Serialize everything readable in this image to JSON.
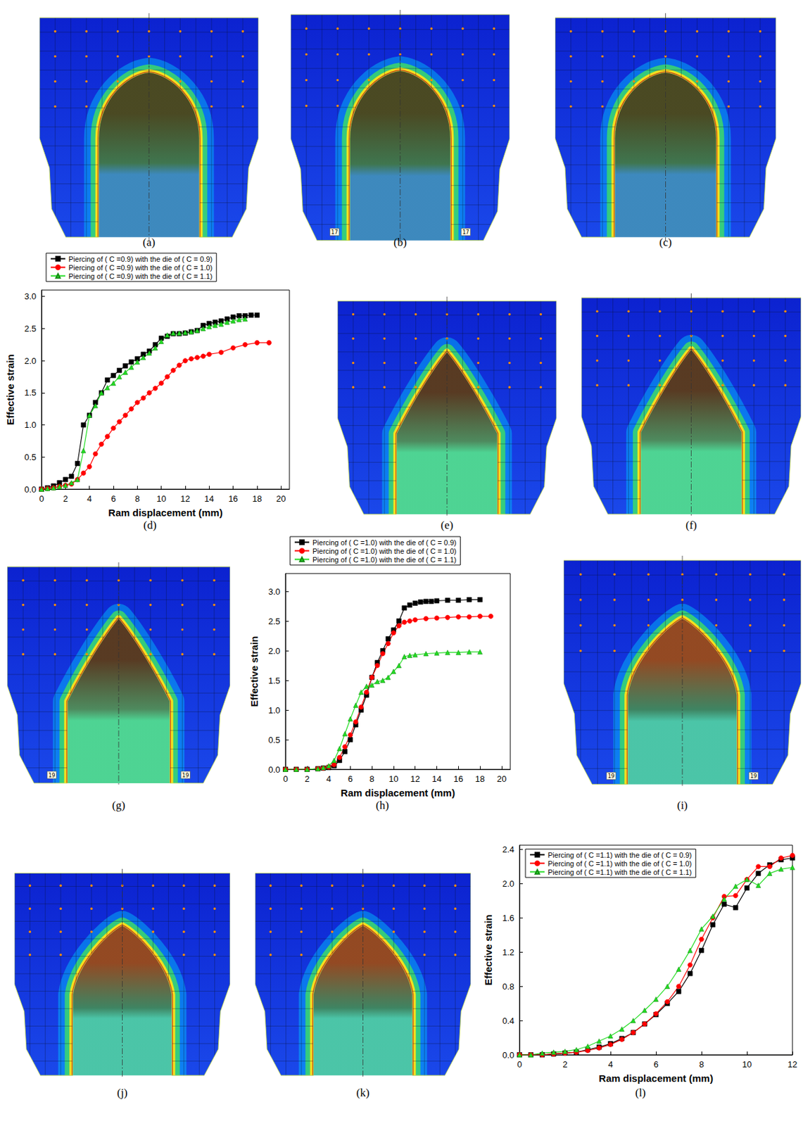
{
  "simulations": [
    {
      "label": "(a)"
    },
    {
      "label": "(b)",
      "node_labels": [
        "17",
        "17"
      ]
    },
    {
      "label": "(c)"
    },
    {
      "label": "(e)"
    },
    {
      "label": "(f)"
    },
    {
      "label": "(g)",
      "node_labels": [
        "19",
        "19"
      ]
    },
    {
      "label": "(i)",
      "node_labels": [
        "19",
        "19"
      ]
    },
    {
      "label": "(j)"
    },
    {
      "label": "(k)"
    }
  ],
  "chart_data": [
    {
      "type": "line",
      "caption": "(d)",
      "x_label": "Ram displacement (mm)",
      "y_label": "Effective strain",
      "xlim": [
        0,
        20.7
      ],
      "xticks": [
        0,
        2,
        4,
        6,
        8,
        10,
        12,
        14,
        16,
        18,
        20
      ],
      "ylim": [
        0,
        3.1
      ],
      "yticks": [
        {
          "value": 0,
          "label": "0.0"
        },
        0.5,
        {
          "value": 1,
          "label": "1.0"
        },
        1.5,
        {
          "value": 2,
          "label": "2.0"
        },
        2.5,
        {
          "value": 3,
          "label": "3.0"
        }
      ],
      "grid": false,
      "legend": "top",
      "series": [
        {
          "name": "Piercing of ( C =0.9) with the die of ( C = 0.9)",
          "color": "#000000",
          "marker": "square",
          "line_style": "solid",
          "x": [
            0,
            0.5,
            1,
            1.5,
            2,
            2.5,
            3,
            3.5,
            4,
            4.5,
            5,
            5.5,
            6,
            6.5,
            7,
            7.5,
            8,
            8.5,
            9,
            9.5,
            10,
            10.5,
            11,
            11.5,
            12,
            12.5,
            13,
            13.5,
            14,
            14.5,
            15,
            15.5,
            16,
            16.5,
            17,
            17.5,
            18
          ],
          "values": [
            0,
            0.02,
            0.05,
            0.1,
            0.15,
            0.2,
            0.4,
            1.0,
            1.15,
            1.35,
            1.5,
            1.7,
            1.77,
            1.85,
            1.92,
            1.98,
            2.03,
            2.1,
            2.15,
            2.25,
            2.35,
            2.38,
            2.42,
            2.42,
            2.43,
            2.45,
            2.47,
            2.55,
            2.58,
            2.6,
            2.62,
            2.65,
            2.68,
            2.7,
            2.7,
            2.71,
            2.71
          ]
        },
        {
          "name": "Piercing of ( C =0.9) with the die of ( C = 1.0)",
          "color": "#ff0000",
          "marker": "circle",
          "line_style": "solid",
          "x": [
            0,
            0.5,
            1,
            1.5,
            2,
            2.5,
            3,
            3.5,
            4,
            4.5,
            5,
            5.5,
            6,
            6.5,
            7,
            7.5,
            8,
            8.5,
            9,
            9.5,
            10,
            10.5,
            11,
            11.5,
            12,
            12.5,
            13,
            13.5,
            14,
            15,
            16,
            17,
            18,
            19
          ],
          "values": [
            0,
            0.01,
            0.02,
            0.04,
            0.06,
            0.08,
            0.15,
            0.25,
            0.35,
            0.55,
            0.7,
            0.82,
            0.95,
            1.05,
            1.15,
            1.25,
            1.35,
            1.42,
            1.5,
            1.57,
            1.65,
            1.75,
            1.85,
            1.93,
            2.0,
            2.03,
            2.05,
            2.07,
            2.1,
            2.13,
            2.2,
            2.25,
            2.28,
            2.28
          ]
        },
        {
          "name": "Piercing of ( C =0.9) with the die of ( C = 1.1)",
          "color": "#22dd22",
          "marker": "triangle",
          "line_style": "solid",
          "x": [
            0,
            0.5,
            1,
            1.5,
            2,
            2.5,
            3,
            3.5,
            4,
            4.5,
            5,
            5.5,
            6,
            6.5,
            7,
            7.5,
            8,
            8.5,
            9,
            9.5,
            10,
            10.5,
            11,
            11.5,
            12,
            12.5,
            13,
            13.5,
            14,
            14.5,
            15,
            15.5,
            16,
            16.5,
            17
          ],
          "values": [
            0,
            0.01,
            0.02,
            0.04,
            0.06,
            0.1,
            0.15,
            0.6,
            1.15,
            1.3,
            1.5,
            1.58,
            1.65,
            1.75,
            1.82,
            1.9,
            1.98,
            2.05,
            2.12,
            2.2,
            2.3,
            2.4,
            2.43,
            2.43,
            2.44,
            2.45,
            2.47,
            2.5,
            2.53,
            2.55,
            2.57,
            2.6,
            2.62,
            2.64,
            2.65
          ]
        }
      ]
    },
    {
      "type": "line",
      "caption": "(h)",
      "x_label": "Ram displacement (mm)",
      "y_label": "Effective strain",
      "xlim": [
        0,
        20.8
      ],
      "xticks": [
        0,
        2,
        4,
        6,
        8,
        10,
        12,
        14,
        16,
        18,
        20
      ],
      "ylim": [
        0,
        3.3
      ],
      "yticks": [
        {
          "value": 0,
          "label": "0.0"
        },
        0.5,
        {
          "value": 1,
          "label": "1.0"
        },
        1.5,
        {
          "value": 2,
          "label": "2.0"
        },
        2.5,
        {
          "value": 3,
          "label": "3.0"
        }
      ],
      "grid": false,
      "legend": "top",
      "series": [
        {
          "name": "Piercing of ( C =1.0) with the die of ( C = 0.9)",
          "color": "#000000",
          "marker": "square",
          "line_style": "solid",
          "x": [
            0,
            1,
            2,
            3,
            3.5,
            4,
            4.5,
            5,
            5.5,
            6,
            6.5,
            7,
            7.5,
            8,
            8.5,
            9,
            9.5,
            10,
            10.5,
            11,
            11.5,
            12,
            12.5,
            13,
            13.5,
            14,
            15,
            16,
            17,
            18
          ],
          "values": [
            0,
            0,
            0,
            0.01,
            0.02,
            0.03,
            0.06,
            0.15,
            0.3,
            0.5,
            0.75,
            1.0,
            1.25,
            1.55,
            1.8,
            2.0,
            2.2,
            2.35,
            2.5,
            2.72,
            2.77,
            2.8,
            2.82,
            2.83,
            2.83,
            2.84,
            2.85,
            2.85,
            2.86,
            2.86
          ]
        },
        {
          "name": "Piercing of ( C =1.0) with the die of ( C = 1.0)",
          "color": "#ff0000",
          "marker": "circle",
          "line_style": "solid",
          "x": [
            0,
            1,
            2,
            3,
            3.5,
            4,
            4.5,
            5,
            5.5,
            6,
            6.5,
            7,
            7.5,
            8,
            8.5,
            9,
            9.5,
            10,
            10.5,
            11,
            11.5,
            12,
            13,
            14,
            15,
            16,
            17,
            18,
            19
          ],
          "values": [
            0,
            0,
            0,
            0.01,
            0.02,
            0.04,
            0.08,
            0.2,
            0.38,
            0.58,
            0.8,
            1.05,
            1.3,
            1.55,
            1.75,
            1.95,
            2.12,
            2.3,
            2.42,
            2.48,
            2.5,
            2.52,
            2.54,
            2.55,
            2.56,
            2.57,
            2.57,
            2.58,
            2.58
          ]
        },
        {
          "name": "Piercing of ( C =1.0) with the die of ( C = 1.1)",
          "color": "#22dd22",
          "marker": "triangle",
          "line_style": "solid",
          "x": [
            0,
            1,
            2,
            3,
            3.5,
            4,
            4.5,
            5,
            5.5,
            6,
            6.5,
            7,
            7.5,
            8,
            8.5,
            9,
            9.5,
            10,
            10.5,
            11,
            11.5,
            12,
            13,
            14,
            15,
            16,
            17,
            18
          ],
          "values": [
            0,
            0,
            0,
            0.01,
            0.03,
            0.06,
            0.15,
            0.35,
            0.6,
            0.85,
            1.08,
            1.3,
            1.4,
            1.42,
            1.48,
            1.5,
            1.55,
            1.65,
            1.75,
            1.9,
            1.92,
            1.93,
            1.95,
            1.96,
            1.97,
            1.97,
            1.98,
            1.98
          ]
        }
      ]
    },
    {
      "type": "line",
      "caption": "(l)",
      "x_label": "Ram displacement (mm)",
      "y_label": "Effective strain",
      "xlim": [
        0,
        12
      ],
      "xticks": [
        0,
        2,
        4,
        6,
        8,
        10,
        12
      ],
      "ylim": [
        0,
        2.45
      ],
      "yticks": [
        {
          "value": 0,
          "label": "0.0"
        },
        0.4,
        0.8,
        1.2,
        1.6,
        {
          "value": 2,
          "label": "2.0"
        },
        2.4
      ],
      "grid": false,
      "legend": "upper left",
      "series": [
        {
          "name": "Piercing of ( C =1.1) with the die of ( C = 0.9)",
          "color": "#000000",
          "marker": "square",
          "line_style": "solid",
          "x": [
            0,
            0.5,
            1,
            1.5,
            2,
            2.5,
            3,
            3.5,
            4,
            4.5,
            5,
            5.5,
            6,
            6.5,
            7,
            7.5,
            8,
            8.5,
            9,
            9.5,
            10,
            10.5,
            11,
            11.5,
            12
          ],
          "values": [
            0,
            0,
            0,
            0.01,
            0.02,
            0.03,
            0.06,
            0.09,
            0.13,
            0.19,
            0.26,
            0.36,
            0.47,
            0.6,
            0.74,
            0.95,
            1.22,
            1.52,
            1.76,
            1.72,
            1.95,
            2.12,
            2.22,
            2.28,
            2.3
          ]
        },
        {
          "name": "Piercing of ( C =1.1) with the die of ( C = 1.0)",
          "color": "#ff0000",
          "marker": "circle",
          "line_style": "solid",
          "x": [
            0,
            0.5,
            1,
            1.5,
            2,
            2.5,
            3,
            3.5,
            4,
            4.5,
            5,
            5.5,
            6,
            6.5,
            7,
            7.5,
            8,
            8.5,
            9,
            9.5,
            10,
            10.5,
            11,
            11.5,
            12
          ],
          "values": [
            0,
            0,
            0,
            0.01,
            0.02,
            0.03,
            0.05,
            0.08,
            0.12,
            0.18,
            0.26,
            0.36,
            0.48,
            0.62,
            0.8,
            1.05,
            1.35,
            1.6,
            1.85,
            1.86,
            2.05,
            2.2,
            2.2,
            2.3,
            2.33
          ]
        },
        {
          "name": "Piercing of ( C =1.1) with the die of ( C = 1.1)",
          "color": "#22dd22",
          "marker": "triangle",
          "line_style": "solid",
          "x": [
            0,
            0.5,
            1,
            1.5,
            2,
            2.5,
            3,
            3.5,
            4,
            4.5,
            5,
            5.5,
            6,
            6.5,
            7,
            7.5,
            8,
            8.5,
            9,
            9.5,
            10,
            10.5,
            11,
            11.5,
            12
          ],
          "values": [
            0,
            0,
            0.02,
            0.03,
            0.04,
            0.06,
            0.1,
            0.16,
            0.22,
            0.3,
            0.4,
            0.52,
            0.65,
            0.8,
            1.0,
            1.22,
            1.47,
            1.62,
            1.82,
            1.97,
            2.05,
            1.98,
            2.12,
            2.17,
            2.19
          ]
        }
      ]
    }
  ]
}
